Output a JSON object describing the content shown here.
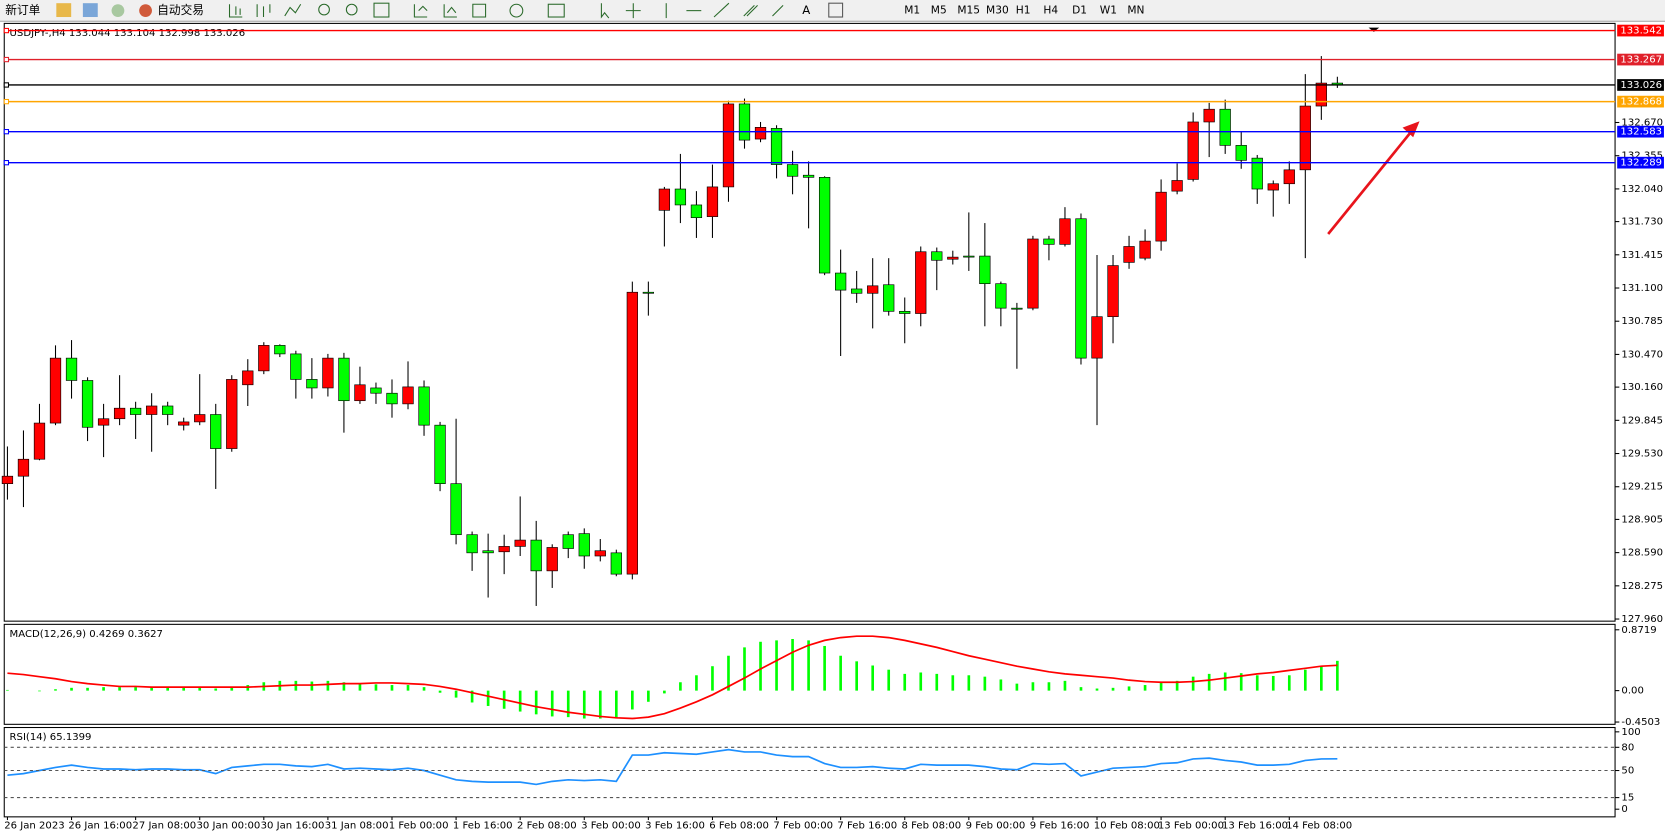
{
  "toolbar": {
    "buttons": [
      "新订单",
      "自动交易"
    ],
    "timeframes": [
      "M1",
      "M5",
      "M15",
      "M30",
      "H1",
      "H4",
      "D1",
      "W1",
      "MN"
    ]
  },
  "chart_data": [
    {
      "type": "candlestick",
      "title": "USDJPY-,H4  133.044 133.104 132.998 133.026",
      "up_color": "#ff0000",
      "down_color": "#00ff00",
      "wick_color": "#000000",
      "ylim": [
        127.94,
        133.61
      ],
      "yticks": [
        {
          "value": 132.67,
          "label": "132.670"
        },
        132.355,
        {
          "value": 132.04,
          "label": "132.040"
        },
        {
          "value": 131.73,
          "label": "131.730"
        },
        131.415,
        {
          "value": 131.1,
          "label": "131.100"
        },
        130.785,
        {
          "value": 130.47,
          "label": "130.470"
        },
        {
          "value": 130.16,
          "label": "130.160"
        },
        129.845,
        {
          "value": 129.53,
          "label": "129.530"
        },
        129.215,
        128.905,
        {
          "value": 128.59,
          "label": "128.590"
        },
        128.275,
        {
          "value": 127.96,
          "label": "127.960"
        }
      ],
      "levels": [
        {
          "value": 133.542,
          "color": "#ff0000"
        },
        {
          "value": 133.267,
          "color": "#e0202a"
        },
        {
          "value": 133.026,
          "color": "#000000"
        },
        {
          "value": 132.868,
          "color": "#ffa500"
        },
        {
          "value": 132.583,
          "color": "#0000ff"
        },
        {
          "value": 132.289,
          "color": "#0000ff"
        }
      ],
      "open": [
        129.244,
        129.315,
        129.476,
        129.819,
        130.435,
        130.223,
        129.799,
        129.86,
        129.96,
        129.9,
        129.981,
        129.799,
        129.83,
        129.9,
        129.577,
        130.182,
        130.314,
        130.556,
        130.475,
        130.233,
        130.152,
        130.435,
        130.031,
        130.152,
        130.102,
        130.001,
        130.162,
        129.799,
        129.244,
        128.76,
        128.608,
        128.598,
        128.649,
        128.709,
        128.417,
        128.76,
        128.77,
        128.558,
        128.588,
        128.386,
        131.06,
        131.837,
        132.039,
        131.888,
        131.777,
        132.059,
        132.846,
        132.513,
        132.614,
        132.271,
        132.17,
        132.15,
        131.242,
        131.091,
        131.05,
        131.131,
        130.879,
        130.858,
        131.444,
        131.373,
        131.403,
        131.403,
        131.141,
        130.909,
        130.909,
        131.565,
        131.514,
        131.757,
        130.435,
        130.828,
        131.343,
        131.383,
        131.545,
        132.019,
        132.13,
        132.675,
        132.796,
        132.453,
        132.332,
        132.029,
        132.089,
        132.221,
        132.826,
        133.044
      ],
      "high": [
        129.597,
        129.749,
        130.001,
        130.556,
        130.606,
        130.253,
        130.001,
        130.273,
        130.021,
        130.102,
        130.021,
        129.87,
        130.283,
        130.001,
        130.273,
        130.425,
        130.586,
        130.566,
        130.505,
        130.435,
        130.475,
        130.485,
        130.354,
        130.203,
        130.233,
        130.404,
        130.223,
        129.83,
        129.86,
        128.79,
        128.77,
        128.76,
        129.123,
        128.891,
        128.669,
        128.79,
        128.82,
        128.719,
        128.618,
        131.161,
        131.161,
        132.059,
        132.372,
        132.019,
        132.271,
        132.876,
        132.897,
        132.675,
        132.644,
        132.402,
        132.301,
        132.16,
        131.464,
        131.262,
        131.383,
        131.383,
        131.01,
        131.494,
        131.484,
        131.454,
        131.817,
        131.716,
        131.161,
        130.959,
        131.595,
        131.595,
        131.867,
        131.807,
        131.413,
        131.413,
        131.595,
        131.656,
        132.13,
        132.281,
        132.765,
        132.856,
        132.887,
        132.584,
        132.362,
        132.12,
        132.301,
        133.129,
        133.3,
        133.104
      ],
      "low": [
        129.093,
        129.022,
        129.466,
        129.799,
        130.051,
        129.648,
        129.496,
        129.799,
        129.668,
        129.547,
        129.799,
        129.749,
        129.799,
        129.194,
        129.547,
        129.981,
        130.283,
        130.445,
        130.051,
        130.051,
        130.071,
        129.728,
        130.001,
        130.001,
        129.87,
        129.95,
        129.698,
        129.173,
        128.669,
        128.417,
        128.164,
        128.386,
        128.558,
        128.084,
        128.255,
        128.538,
        128.437,
        128.507,
        128.366,
        128.336,
        130.838,
        131.494,
        131.716,
        131.575,
        131.575,
        131.918,
        132.422,
        132.483,
        132.14,
        131.989,
        131.666,
        131.222,
        130.455,
        130.959,
        130.717,
        130.838,
        130.576,
        130.737,
        131.08,
        131.323,
        131.262,
        130.737,
        130.737,
        130.334,
        130.889,
        131.363,
        131.494,
        130.374,
        129.799,
        130.576,
        131.282,
        131.363,
        131.454,
        131.989,
        132.11,
        132.342,
        132.372,
        132.231,
        131.898,
        131.777,
        131.898,
        131.383,
        132.695,
        132.998
      ],
      "close": [
        129.315,
        129.476,
        129.819,
        130.435,
        130.223,
        129.779,
        129.86,
        129.96,
        129.9,
        129.981,
        129.9,
        129.83,
        129.9,
        129.577,
        130.233,
        130.314,
        130.556,
        130.475,
        130.233,
        130.152,
        130.435,
        130.031,
        130.182,
        130.102,
        130.001,
        130.162,
        129.799,
        129.244,
        128.76,
        128.588,
        128.588,
        128.649,
        128.709,
        128.417,
        128.639,
        128.629,
        128.558,
        128.608,
        128.386,
        131.06,
        131.05,
        132.039,
        131.888,
        131.767,
        132.059,
        132.846,
        132.503,
        132.624,
        132.271,
        132.16,
        132.15,
        131.242,
        131.08,
        131.05,
        131.121,
        130.879,
        130.858,
        131.444,
        131.363,
        131.393,
        131.393,
        131.141,
        130.909,
        130.899,
        131.565,
        131.514,
        131.757,
        130.435,
        130.828,
        131.313,
        131.494,
        131.545,
        132.009,
        132.12,
        132.675,
        132.796,
        132.453,
        132.311,
        132.039,
        132.089,
        132.221,
        132.826,
        133.044,
        133.026
      ]
    },
    {
      "type": "combo",
      "title": "MACD(12,26,9) 0.4269 0.3627",
      "ylim": [
        -0.483,
        0.95
      ],
      "yticks": [
        0.8719,
        {
          "value": 0,
          "label": "0.00"
        },
        -0.4503
      ],
      "series": [
        {
          "type": "bar",
          "color": "#00ff00",
          "values": [
            0.01,
            0,
            -0.01,
            0.02,
            0.04,
            0.04,
            0.05,
            0.05,
            0.05,
            0.05,
            0.05,
            0.05,
            0.04,
            0.03,
            0.04,
            0.08,
            0.12,
            0.14,
            0.14,
            0.13,
            0.14,
            0.12,
            0.1,
            0.09,
            0.08,
            0.08,
            0.05,
            -0.03,
            -0.1,
            -0.17,
            -0.22,
            -0.26,
            -0.3,
            -0.34,
            -0.37,
            -0.38,
            -0.4,
            -0.4,
            -0.4,
            -0.27,
            -0.16,
            -0.04,
            0.12,
            0.22,
            0.35,
            0.5,
            0.62,
            0.7,
            0.72,
            0.74,
            0.72,
            0.64,
            0.5,
            0.42,
            0.36,
            0.3,
            0.24,
            0.26,
            0.24,
            0.22,
            0.22,
            0.2,
            0.16,
            0.1,
            0.12,
            0.12,
            0.14,
            0.05,
            0.03,
            0.04,
            0.06,
            0.08,
            0.12,
            0.14,
            0.2,
            0.24,
            0.26,
            0.25,
            0.22,
            0.21,
            0.22,
            0.3,
            0.36,
            0.4269
          ]
        },
        {
          "type": "line",
          "color": "#ff0000",
          "values": [
            0.25,
            0.23,
            0.2,
            0.17,
            0.13,
            0.1,
            0.08,
            0.06,
            0.06,
            0.05,
            0.05,
            0.05,
            0.05,
            0.05,
            0.05,
            0.05,
            0.06,
            0.07,
            0.08,
            0.08,
            0.09,
            0.1,
            0.1,
            0.11,
            0.11,
            0.1,
            0.09,
            0.06,
            0.02,
            -0.03,
            -0.08,
            -0.13,
            -0.18,
            -0.23,
            -0.27,
            -0.31,
            -0.34,
            -0.37,
            -0.39,
            -0.4,
            -0.38,
            -0.33,
            -0.25,
            -0.16,
            -0.06,
            0.06,
            0.18,
            0.31,
            0.43,
            0.55,
            0.65,
            0.72,
            0.76,
            0.78,
            0.78,
            0.76,
            0.72,
            0.67,
            0.62,
            0.56,
            0.5,
            0.45,
            0.4,
            0.35,
            0.31,
            0.27,
            0.24,
            0.22,
            0.2,
            0.18,
            0.15,
            0.13,
            0.12,
            0.12,
            0.13,
            0.15,
            0.18,
            0.21,
            0.24,
            0.26,
            0.29,
            0.32,
            0.35,
            0.3627
          ]
        }
      ]
    },
    {
      "type": "line",
      "title": "RSI(14) 65.1399",
      "ylim": [
        -9.9,
        105.6
      ],
      "yticks": [
        100,
        80,
        50,
        15,
        0
      ],
      "levels": [
        80,
        50,
        15
      ],
      "categories": [
        "26 Jan 2023",
        null,
        null,
        null,
        "26 Jan 16:00",
        null,
        null,
        null,
        "27 Jan 08:00",
        null,
        null,
        null,
        "30 Jan 00:00",
        null,
        null,
        null,
        "30 Jan 16:00",
        null,
        null,
        null,
        "31 Jan 08:00",
        null,
        null,
        null,
        "1 Feb 00:00",
        null,
        null,
        null,
        "1 Feb 16:00",
        null,
        null,
        null,
        "2 Feb 08:00",
        null,
        null,
        null,
        "3 Feb 00:00",
        null,
        null,
        null,
        "3 Feb 16:00",
        null,
        null,
        null,
        "6 Feb 08:00",
        null,
        null,
        null,
        "7 Feb 00:00",
        null,
        null,
        null,
        "7 Feb 16:00",
        null,
        null,
        null,
        "8 Feb 08:00",
        null,
        null,
        null,
        "9 Feb 00:00",
        null,
        null,
        null,
        "9 Feb 16:00",
        null,
        null,
        null,
        "10 Feb 08:00",
        null,
        null,
        null,
        "13 Feb 00:00",
        null,
        null,
        null,
        "13 Feb 16:00",
        null,
        null,
        null,
        "14 Feb 08:00",
        null,
        null,
        null
      ],
      "series": [
        {
          "type": "line",
          "color": "#1e90ff",
          "values": [
            44,
            46,
            50,
            54,
            57,
            54,
            52,
            52,
            51,
            52,
            52,
            51,
            51,
            46,
            54,
            56,
            58,
            58,
            56,
            55,
            58,
            52,
            53,
            52,
            51,
            53,
            50,
            44,
            38,
            36,
            35,
            35,
            35,
            32,
            36,
            38,
            37,
            38,
            36,
            70,
            70,
            73,
            72,
            71,
            74,
            77,
            74,
            74,
            70,
            68,
            68,
            59,
            54,
            54,
            55,
            53,
            52,
            58,
            57,
            57,
            57,
            55,
            52,
            51,
            59,
            58,
            59,
            43,
            48,
            53,
            54,
            55,
            59,
            60,
            65,
            66,
            63,
            61,
            57,
            57,
            58,
            63,
            65,
            65.1399
          ]
        }
      ]
    }
  ]
}
